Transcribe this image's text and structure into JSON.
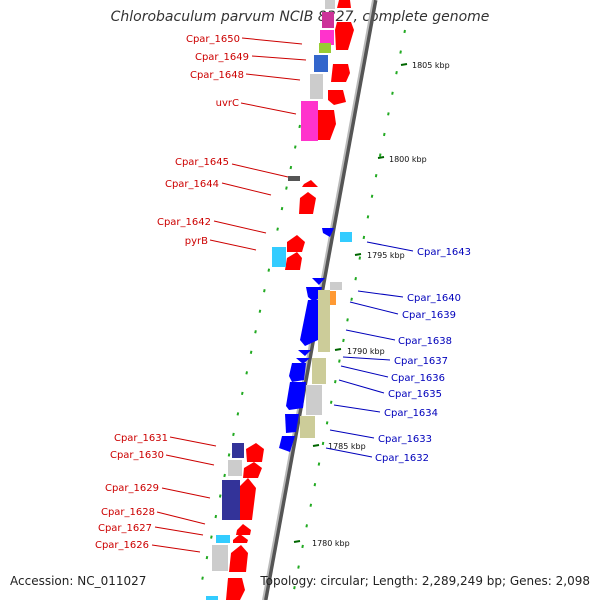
{
  "title": "Chlorobaculum parvum NCIB 8327, complete genome",
  "footer": {
    "accession": "Accession: NC_011027",
    "summary": "Topology: circular; Length: 2,289,249 bp; Genes: 2,098"
  },
  "ruler": [
    "1805 kbp",
    "1800 kbp",
    "1795 kbp",
    "1790 kbp",
    "1785 kbp",
    "1780 kbp"
  ],
  "left_labels": [
    "Cpar_1650",
    "Cpar_1649",
    "Cpar_1648",
    "uvrC",
    "Cpar_1645",
    "Cpar_1644",
    "Cpar_1642",
    "pyrB",
    "Cpar_1631",
    "Cpar_1630",
    "Cpar_1629",
    "Cpar_1628",
    "Cpar_1627",
    "Cpar_1626"
  ],
  "right_labels": [
    "Cpar_1643",
    "Cpar_1640",
    "Cpar_1639",
    "Cpar_1638",
    "Cpar_1637",
    "Cpar_1636",
    "Cpar_1635",
    "Cpar_1634",
    "Cpar_1633",
    "Cpar_1632"
  ],
  "colors": {
    "forward": "#ff0000",
    "reverse": "#0000ff",
    "label_left": "#cc0000",
    "label_right": "#0000bb",
    "backbone": "#888888"
  }
}
